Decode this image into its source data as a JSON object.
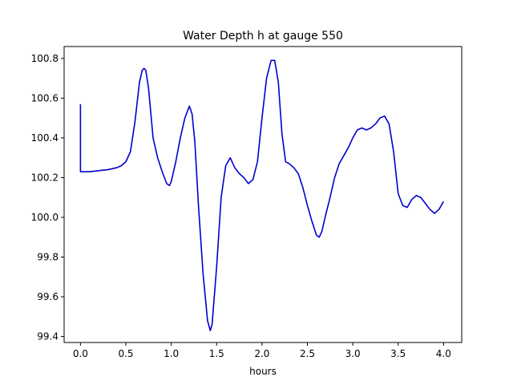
{
  "chart_data": {
    "type": "line",
    "title": "Water Depth h at gauge 550",
    "xlabel": "hours",
    "ylabel": "",
    "xlim": [
      -0.18,
      4.2
    ],
    "ylim": [
      99.37,
      100.86
    ],
    "grid": false,
    "xticks": [
      0.0,
      0.5,
      1.0,
      1.5,
      2.0,
      2.5,
      3.0,
      3.5,
      4.0
    ],
    "xtick_labels": [
      "0.0",
      "0.5",
      "1.0",
      "1.5",
      "2.0",
      "2.5",
      "3.0",
      "3.5",
      "4.0"
    ],
    "yticks": [
      99.4,
      99.6,
      99.8,
      100.0,
      100.2,
      100.4,
      100.6,
      100.8
    ],
    "ytick_labels": [
      "99.4",
      "99.6",
      "99.8",
      "100.0",
      "100.2",
      "100.4",
      "100.6",
      "100.8"
    ],
    "series": [
      {
        "color": "#0000cc",
        "x": [
          0.0,
          0.0,
          0.0,
          0.1,
          0.2,
          0.3,
          0.4,
          0.45,
          0.5,
          0.55,
          0.6,
          0.65,
          0.68,
          0.7,
          0.72,
          0.75,
          0.8,
          0.85,
          0.9,
          0.95,
          0.98,
          1.0,
          1.05,
          1.1,
          1.15,
          1.2,
          1.23,
          1.26,
          1.3,
          1.35,
          1.4,
          1.43,
          1.45,
          1.5,
          1.55,
          1.6,
          1.65,
          1.7,
          1.75,
          1.8,
          1.85,
          1.9,
          1.95,
          2.0,
          2.05,
          2.1,
          2.14,
          2.18,
          2.22,
          2.26,
          2.3,
          2.35,
          2.4,
          2.45,
          2.5,
          2.55,
          2.6,
          2.63,
          2.66,
          2.7,
          2.75,
          2.8,
          2.85,
          2.9,
          2.95,
          3.0,
          3.05,
          3.1,
          3.15,
          3.2,
          3.25,
          3.3,
          3.35,
          3.4,
          3.45,
          3.5,
          3.55,
          3.6,
          3.65,
          3.7,
          3.75,
          3.8,
          3.85,
          3.9,
          3.95,
          4.0
        ],
        "y": [
          100.57,
          100.44,
          100.23,
          100.23,
          100.235,
          100.24,
          100.25,
          100.26,
          100.28,
          100.33,
          100.48,
          100.68,
          100.74,
          100.75,
          100.74,
          100.65,
          100.4,
          100.3,
          100.23,
          100.17,
          100.16,
          100.18,
          100.28,
          100.4,
          100.5,
          100.56,
          100.52,
          100.38,
          100.06,
          99.72,
          99.48,
          99.43,
          99.46,
          99.75,
          100.1,
          100.26,
          100.3,
          100.25,
          100.22,
          100.2,
          100.17,
          100.19,
          100.28,
          100.5,
          100.7,
          100.79,
          100.79,
          100.68,
          100.42,
          100.28,
          100.27,
          100.25,
          100.22,
          100.15,
          100.06,
          99.98,
          99.91,
          99.9,
          99.93,
          100.01,
          100.1,
          100.2,
          100.27,
          100.31,
          100.35,
          100.4,
          100.44,
          100.45,
          100.44,
          100.45,
          100.47,
          100.5,
          100.51,
          100.47,
          100.33,
          100.12,
          100.06,
          100.05,
          100.09,
          100.11,
          100.1,
          100.07,
          100.04,
          100.02,
          100.04,
          100.08
        ]
      }
    ]
  }
}
